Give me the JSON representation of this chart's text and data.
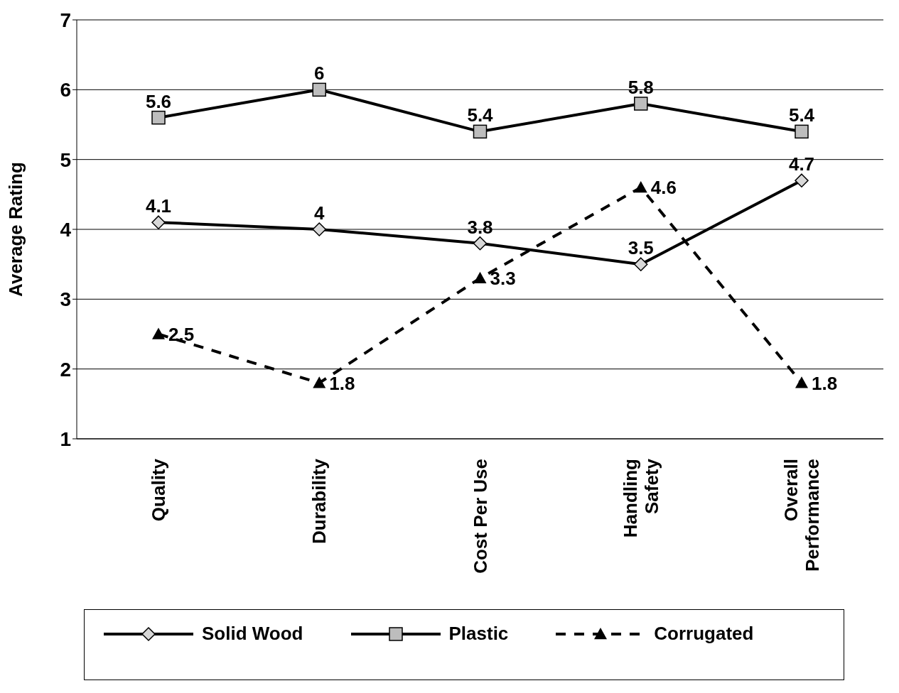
{
  "chart_data": {
    "type": "line",
    "ylabel": "Average Rating",
    "categories": [
      "Quality",
      "Durability",
      "Cost Per Use",
      "Handling\nSafety",
      "Overall\nPerformance"
    ],
    "series": [
      {
        "name": "Solid Wood",
        "color": "#000000",
        "values": [
          4.1,
          4,
          3.8,
          3.5,
          4.7
        ],
        "marker": "diamond",
        "line_style": "solid"
      },
      {
        "name": "Plastic",
        "color": "#000000",
        "values": [
          5.6,
          6,
          5.4,
          5.8,
          5.4
        ],
        "marker": "square",
        "line_style": "solid"
      },
      {
        "name": "Corrugated",
        "color": "#000000",
        "values": [
          2.5,
          1.8,
          3.3,
          4.6,
          1.8
        ],
        "marker": "triangle",
        "line_style": "dashed"
      }
    ],
    "ylim": [
      1,
      7
    ],
    "yticks": [
      1,
      2,
      3,
      4,
      5,
      6,
      7
    ],
    "grid": "y",
    "legend": "bottom",
    "data_labels": true
  }
}
